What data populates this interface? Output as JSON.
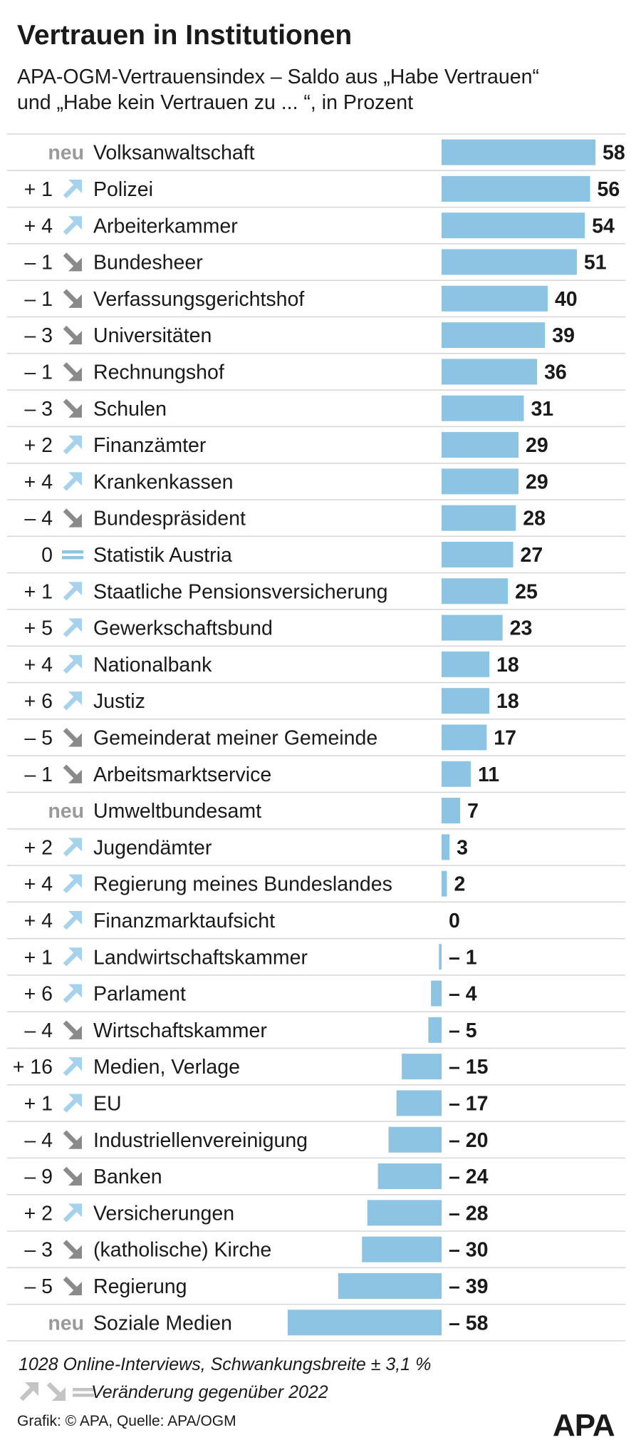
{
  "chart_data": {
    "type": "bar",
    "orientation": "horizontal",
    "title": "Vertrauen in Institutionen",
    "subtitle_line1": "APA-OGM-Vertrauensindex – Saldo aus „Habe Vertrauen“",
    "subtitle_line2": "und „Habe kein Vertrauen zu ... “, in Prozent",
    "categories": [
      "Volksanwaltschaft",
      "Polizei",
      "Arbeiterkammer",
      "Bundesheer",
      "Verfassungsgerichtshof",
      "Universitäten",
      "Rechnungshof",
      "Schulen",
      "Finanzämter",
      "Krankenkassen",
      "Bundespräsident",
      "Statistik Austria",
      "Staatliche Pensionsversicherung",
      "Gewerkschaftsbund",
      "Nationalbank",
      "Justiz",
      "Gemeinderat meiner Gemeinde",
      "Arbeitsmarktservice",
      "Umweltbundesamt",
      "Jugendämter",
      "Regierung meines Bundeslandes",
      "Finanzmarktaufsicht",
      "Landwirtschaftskammer",
      "Parlament",
      "Wirtschaftskammer",
      "Medien, Verlage",
      "EU",
      "Industriellenvereinigung",
      "Banken",
      "Versicherungen",
      "(katholische) Kirche",
      "Regierung",
      "Soziale Medien"
    ],
    "values": [
      58,
      56,
      54,
      51,
      40,
      39,
      36,
      31,
      29,
      29,
      28,
      27,
      25,
      23,
      18,
      18,
      17,
      11,
      7,
      3,
      2,
      0,
      -1,
      -4,
      -5,
      -15,
      -17,
      -20,
      -24,
      -28,
      -30,
      -39,
      -58
    ],
    "value_labels": [
      "58",
      "56",
      "54",
      "51",
      "40",
      "39",
      "36",
      "31",
      "29",
      "29",
      "28",
      "27",
      "25",
      "23",
      "18",
      "18",
      "17",
      "11",
      "7",
      "3",
      "2",
      "0",
      "– 1",
      "– 4",
      "– 5",
      "– 15",
      "– 17",
      "– 20",
      "– 24",
      "– 28",
      "– 30",
      "– 39",
      "– 58"
    ],
    "change_labels": [
      "neu",
      "+ 1",
      "+ 4",
      "– 1",
      "– 1",
      "– 3",
      "– 1",
      "– 3",
      "+ 2",
      "+ 4",
      "– 4",
      "0",
      "+ 1",
      "+ 5",
      "+ 4",
      "+ 6",
      "– 5",
      "– 1",
      "neu",
      "+ 2",
      "+ 4",
      "+ 4",
      "+ 1",
      "+ 6",
      "– 4",
      "+ 16",
      "+ 1",
      "– 4",
      "– 9",
      "+ 2",
      "– 3",
      "– 5",
      "neu"
    ],
    "change_icons": [
      "none",
      "up",
      "up",
      "down",
      "down",
      "down",
      "down",
      "down",
      "up",
      "up",
      "down",
      "equal",
      "up",
      "up",
      "up",
      "up",
      "down",
      "down",
      "none",
      "up",
      "up",
      "up",
      "up",
      "up",
      "down",
      "up",
      "up",
      "down",
      "down",
      "up",
      "down",
      "down",
      "none"
    ],
    "xlim": [
      -58,
      58
    ],
    "colors": {
      "bar": "#8ec4e3",
      "up_arrow": "#a7d2ec",
      "down_arrow": "#8a8a8a",
      "equal_icon": "#8ec4e3",
      "neu_text": "#9a9a9a",
      "row_divider": "#d6d6d6",
      "text": "#1a1a1a"
    }
  },
  "footer": {
    "note": "1028 Online-Interviews, Schwankungsbreite ± 3,1 %",
    "legend_text": "Veränderung gegenüber 2022",
    "legend_icons": [
      "up-arrow-icon",
      "down-arrow-icon",
      "equal-icon"
    ],
    "credit": "Grafik: © APA, Quelle: APA/OGM",
    "logo": "APA"
  }
}
